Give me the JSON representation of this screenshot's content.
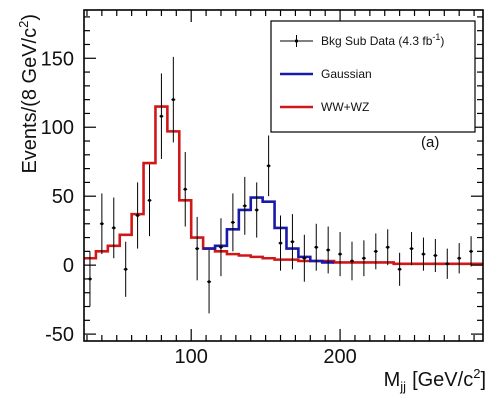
{
  "chart_data": {
    "type": "line",
    "panel_label": "(a)",
    "xlabel": {
      "main": "M",
      "sub": "jj",
      "unit": "[GeV/c",
      "sup": "2",
      "close": "]"
    },
    "ylabel": {
      "main": "Events/(8 GeV/c",
      "sup": "2",
      "close": ")"
    },
    "xlim": [
      28,
      296
    ],
    "ylim": [
      -55,
      185
    ],
    "xticks": [
      100,
      200
    ],
    "yticks": [
      -50,
      0,
      50,
      100,
      150
    ],
    "legend": {
      "placement": "top-right",
      "entries": [
        {
          "id": "data",
          "label": "Bkg Sub Data (4.3 fb",
          "sup": "-1",
          "close": ")",
          "color": "#000000",
          "style": "errorbar"
        },
        {
          "id": "gauss",
          "label": "Gaussian",
          "color": "#1a1aa8",
          "style": "line"
        },
        {
          "id": "wwwz",
          "label": "WW+WZ",
          "color": "#d01818",
          "style": "line"
        }
      ]
    },
    "bin_edges": [
      28,
      36,
      44,
      52,
      60,
      68,
      76,
      84,
      92,
      100,
      108,
      116,
      124,
      132,
      140,
      148,
      156,
      164,
      172,
      180,
      188,
      196,
      204,
      212,
      220,
      228,
      236,
      244,
      252,
      260,
      268,
      276,
      284,
      292,
      296
    ],
    "series": [
      {
        "id": "wwwz",
        "color": "#d01818",
        "values": [
          5,
          10,
          14,
          22,
          37,
          74,
          115,
          97,
          47,
          20,
          12,
          10,
          8,
          7,
          6,
          5,
          4,
          4,
          3,
          3,
          3,
          2,
          2,
          2,
          2,
          2,
          1,
          1,
          1,
          1,
          1,
          1,
          1,
          1
        ]
      },
      {
        "id": "gauss",
        "color": "#1a1aa8",
        "x_range": [
          108,
          196
        ],
        "values": [
          12,
          14,
          26,
          40,
          49,
          46,
          27,
          12,
          6,
          3,
          2
        ]
      },
      {
        "id": "data",
        "type": "errorbar",
        "color": "#000000",
        "points": [
          {
            "x": 32,
            "y": -10,
            "err": 20
          },
          {
            "x": 40,
            "y": 30,
            "err": 22
          },
          {
            "x": 48,
            "y": 27,
            "err": 22
          },
          {
            "x": 56,
            "y": -3,
            "err": 20
          },
          {
            "x": 64,
            "y": 36,
            "err": 24
          },
          {
            "x": 72,
            "y": 47,
            "err": 26
          },
          {
            "x": 80,
            "y": 108,
            "err": 31
          },
          {
            "x": 88,
            "y": 120,
            "err": 31
          },
          {
            "x": 96,
            "y": 55,
            "err": 27
          },
          {
            "x": 104,
            "y": 12,
            "err": 23
          },
          {
            "x": 112,
            "y": -12,
            "err": 23
          },
          {
            "x": 120,
            "y": 13,
            "err": 21
          },
          {
            "x": 128,
            "y": 31,
            "err": 21
          },
          {
            "x": 136,
            "y": 43,
            "err": 21
          },
          {
            "x": 144,
            "y": 40,
            "err": 20
          },
          {
            "x": 152,
            "y": 72,
            "err": 22
          },
          {
            "x": 160,
            "y": 16,
            "err": 20
          },
          {
            "x": 168,
            "y": 17,
            "err": 20
          },
          {
            "x": 176,
            "y": 5,
            "err": 17
          },
          {
            "x": 184,
            "y": 13,
            "err": 17
          },
          {
            "x": 192,
            "y": 11,
            "err": 17
          },
          {
            "x": 200,
            "y": 8,
            "err": 16
          },
          {
            "x": 208,
            "y": 3,
            "err": 14
          },
          {
            "x": 216,
            "y": 5,
            "err": 13
          },
          {
            "x": 224,
            "y": 10,
            "err": 13
          },
          {
            "x": 232,
            "y": 13,
            "err": 13
          },
          {
            "x": 240,
            "y": -3,
            "err": 12
          },
          {
            "x": 248,
            "y": 12,
            "err": 12
          },
          {
            "x": 256,
            "y": 8,
            "err": 12
          },
          {
            "x": 264,
            "y": 7,
            "err": 12
          },
          {
            "x": 272,
            "y": 1,
            "err": 11
          },
          {
            "x": 280,
            "y": 5,
            "err": 11
          },
          {
            "x": 288,
            "y": 10,
            "err": 11
          }
        ]
      }
    ],
    "grid": false
  }
}
